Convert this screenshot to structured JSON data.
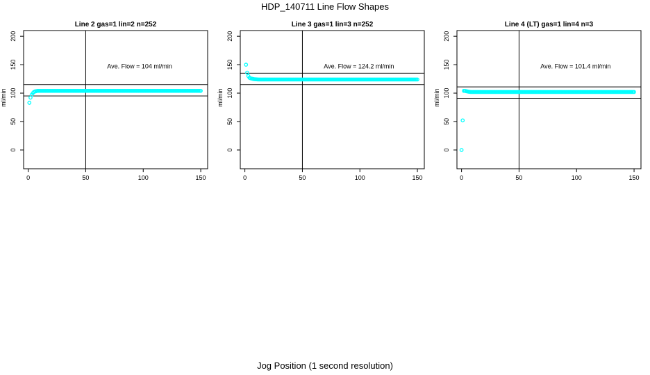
{
  "title": "HDP_140711  Line Flow Shapes",
  "xlabel": "Jog Position (1 second resolution)",
  "chart_data": [
    {
      "type": "scatter",
      "title": "Line 2 gas=1 lin=2 n=252",
      "ylabel": "ml/min",
      "annotation": "Ave. Flow =  104  ml/min",
      "xlim": [
        -4,
        156
      ],
      "ylim": [
        -33,
        210
      ],
      "xticks": [
        0,
        50,
        100,
        150
      ],
      "yticks": [
        0,
        50,
        100,
        150,
        200
      ],
      "vline": 50,
      "hlines": [
        95,
        115
      ],
      "point_color": "#00FFFF",
      "series": [
        {
          "x": [
            1,
            2,
            3,
            4,
            5,
            6,
            7,
            8,
            10,
            12,
            15,
            150
          ],
          "y": [
            83,
            92,
            97,
            100,
            102,
            103,
            103.5,
            104,
            104,
            104,
            104,
            104
          ]
        }
      ]
    },
    {
      "type": "scatter",
      "title": "Line 3 gas=1 lin=3 n=252",
      "ylabel": "ml/min",
      "annotation": "Ave. Flow =  124.2  ml/min",
      "xlim": [
        -4,
        156
      ],
      "ylim": [
        -33,
        210
      ],
      "xticks": [
        0,
        50,
        100,
        150
      ],
      "yticks": [
        0,
        50,
        100,
        150,
        200
      ],
      "vline": 50,
      "hlines": [
        115,
        135
      ],
      "point_color": "#00FFFF",
      "series": [
        {
          "x": [
            1,
            2,
            3,
            4,
            5,
            6,
            7,
            8,
            10,
            12,
            15,
            150
          ],
          "y": [
            150,
            136,
            130,
            127,
            126,
            125.5,
            125,
            124.5,
            124.2,
            124,
            124,
            124
          ]
        }
      ]
    },
    {
      "type": "scatter",
      "title": "Line 4 (LT) gas=1 lin=4 n=3",
      "ylabel": "ml/min",
      "annotation": "Ave. Flow =  101.4  ml/min",
      "xlim": [
        -4,
        156
      ],
      "ylim": [
        -33,
        210
      ],
      "xticks": [
        0,
        50,
        100,
        150
      ],
      "yticks": [
        0,
        50,
        100,
        150,
        200
      ],
      "vline": 50,
      "hlines": [
        91,
        111
      ],
      "point_color": "#00FFFF",
      "series": [
        {
          "x": [
            0,
            2,
            3,
            4,
            5,
            6,
            8,
            150
          ],
          "y": [
            0,
            104,
            104,
            103.5,
            103,
            102.5,
            102,
            102
          ]
        }
      ]
    }
  ]
}
